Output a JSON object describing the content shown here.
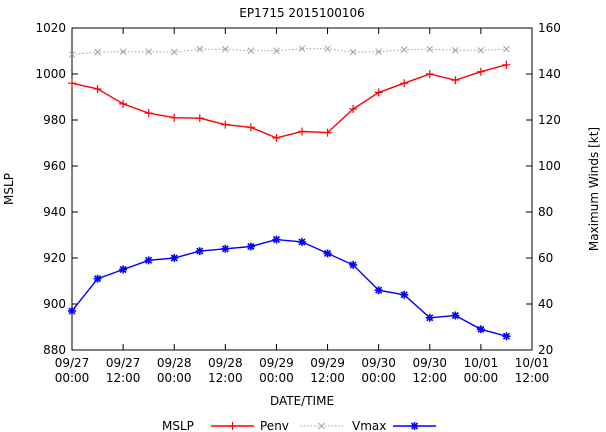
{
  "chart_data": {
    "type": "line",
    "title": "EP1715 2015100106",
    "xlabel": "DATE/TIME",
    "ylabel": "MSLP",
    "y2label": "Maximum Winds [kt]",
    "ylim": [
      880,
      1020
    ],
    "y2lim": [
      20,
      160
    ],
    "xlim": [
      "09/27 00:00",
      "10/01 12:00"
    ],
    "grid": false,
    "legend_position": "bottom",
    "x_ticks": [
      {
        "value": 0,
        "line1": "09/27",
        "line2": "00:00"
      },
      {
        "value": 12,
        "line1": "09/27",
        "line2": "12:00"
      },
      {
        "value": 24,
        "line1": "09/28",
        "line2": "00:00"
      },
      {
        "value": 36,
        "line1": "09/28",
        "line2": "12:00"
      },
      {
        "value": 48,
        "line1": "09/29",
        "line2": "00:00"
      },
      {
        "value": 60,
        "line1": "09/29",
        "line2": "12:00"
      },
      {
        "value": 72,
        "line1": "09/30",
        "line2": "00:00"
      },
      {
        "value": 84,
        "line1": "09/30",
        "line2": "12:00"
      },
      {
        "value": 96,
        "line1": "10/01",
        "line2": "00:00"
      },
      {
        "value": 108,
        "line1": "10/01",
        "line2": "12:00"
      }
    ],
    "y_ticks": [
      880,
      900,
      920,
      940,
      960,
      980,
      1000,
      1020
    ],
    "y2_ticks": [
      20,
      40,
      60,
      80,
      100,
      120,
      140,
      160
    ],
    "x_hours": [
      0,
      6,
      12,
      18,
      24,
      30,
      36,
      42,
      48,
      54,
      60,
      66,
      72,
      78,
      84,
      90,
      96,
      102
    ],
    "series": [
      {
        "name": "MSLP",
        "axis": "left",
        "color": "#ff0000",
        "marker": "plus",
        "values": [
          996,
          993.5,
          987,
          983,
          981,
          980.8,
          978,
          976.8,
          972.2,
          975,
          974.5,
          984.8,
          992,
          996,
          1000,
          997.3,
          1001,
          1004
        ]
      },
      {
        "name": "Penv",
        "axis": "left",
        "color": "#a0a0a0",
        "marker": "x",
        "dashed": true,
        "values": [
          1008.5,
          1009.5,
          1009.7,
          1009.7,
          1009.5,
          1010.8,
          1010.8,
          1010.1,
          1010.1,
          1011,
          1011,
          1009.5,
          1009.7,
          1010.6,
          1010.8,
          1010.3,
          1010.3,
          1010.8
        ]
      },
      {
        "name": "Vmax",
        "axis": "right",
        "color": "#0000ff",
        "marker": "star",
        "values": [
          37,
          51,
          55,
          59,
          60,
          63,
          64,
          65,
          68,
          67,
          62,
          57,
          46,
          44,
          34,
          35,
          29,
          26
        ]
      }
    ]
  }
}
